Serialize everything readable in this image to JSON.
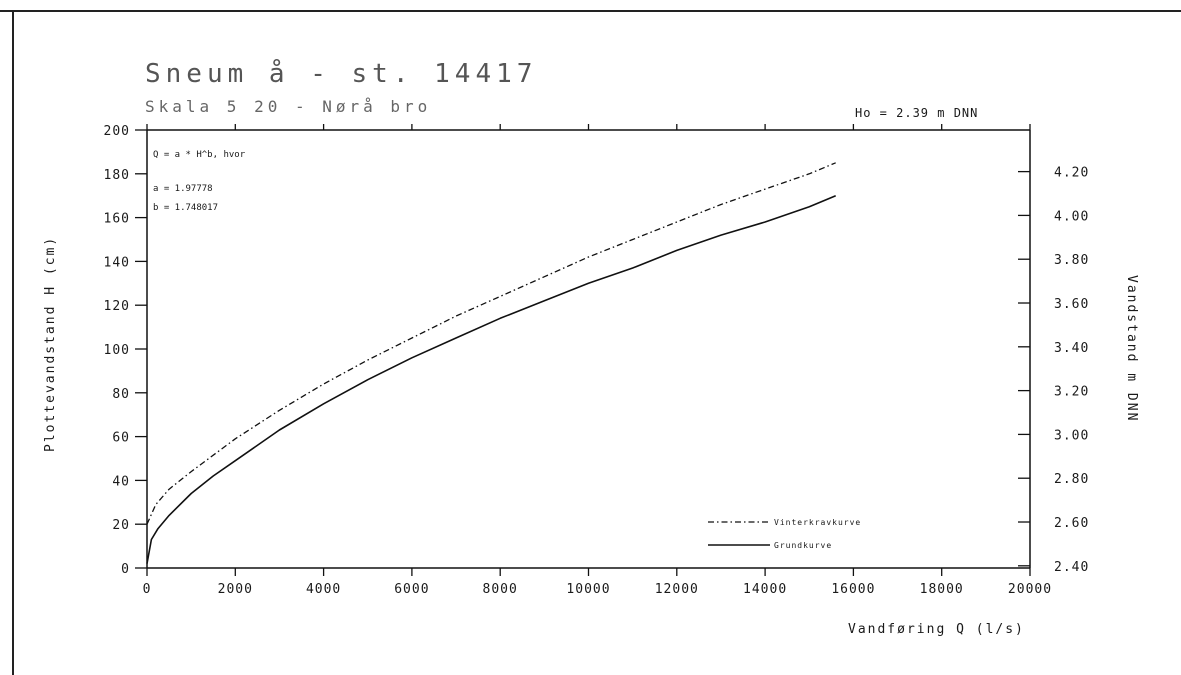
{
  "chart_data": {
    "type": "line",
    "title": "Sneum å - st. 14417",
    "subtitle": "Skala 5 20 - Nørå bro",
    "ho_label": "Ho = 2.39 m DNN",
    "xlabel": "Vandføring Q (l/s)",
    "ylabel": "Plottevandstand H (cm)",
    "y2label": "Vandstand m DNN",
    "xlim": [
      0,
      20000
    ],
    "ylim": [
      0,
      200
    ],
    "y2lim": [
      2.39,
      4.39
    ],
    "x_ticks": [
      "0",
      "2000",
      "4000",
      "6000",
      "8000",
      "10000",
      "12000",
      "14000",
      "16000",
      "18000",
      "20000"
    ],
    "y_ticks": [
      "0",
      "20",
      "40",
      "60",
      "80",
      "100",
      "120",
      "140",
      "160",
      "180",
      "200"
    ],
    "y2_ticks": [
      "2.40",
      "2.60",
      "2.80",
      "3.00",
      "3.20",
      "3.40",
      "3.60",
      "3.80",
      "4.00",
      "4.20"
    ],
    "formula": {
      "line1": "Q = a * H^b, hvor",
      "line2": "a = 1.97778",
      "line3": "b = 1.748017"
    },
    "series": [
      {
        "name": "Vinterkravkurve",
        "style": "dash-dot",
        "x": [
          0,
          200,
          500,
          1000,
          2000,
          3000,
          4000,
          5000,
          6000,
          7000,
          8000,
          9000,
          10000,
          11000,
          12000,
          13000,
          14000,
          15000,
          15600
        ],
        "y": [
          20,
          29,
          36,
          44,
          59,
          72,
          84,
          95,
          105,
          115,
          124,
          133,
          142,
          150,
          158,
          166,
          173,
          180,
          185
        ]
      },
      {
        "name": "Grundkurve",
        "style": "solid",
        "x": [
          0,
          100,
          250,
          500,
          1000,
          1500,
          2000,
          3000,
          4000,
          5000,
          6000,
          7000,
          8000,
          9000,
          10000,
          11000,
          12000,
          13000,
          14000,
          15000,
          15600
        ],
        "y": [
          2,
          13,
          18,
          24,
          34,
          42,
          49,
          63,
          75,
          86,
          96,
          105,
          114,
          122,
          130,
          137,
          145,
          152,
          158,
          165,
          170
        ]
      }
    ],
    "legend_position": "bottom-right",
    "grid": false,
    "line_color": "#111111"
  }
}
